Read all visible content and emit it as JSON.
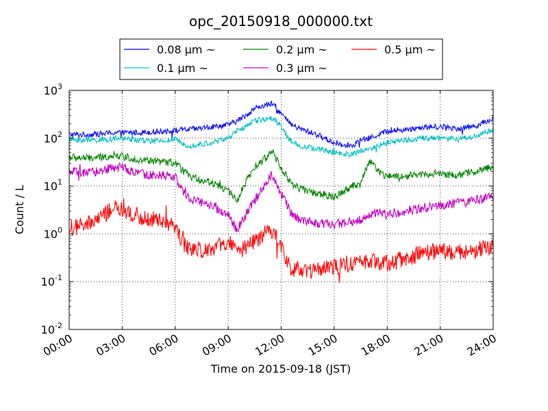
{
  "chart_data": {
    "type": "line",
    "title": "opc_20150918_000000.txt",
    "xlabel": "Time on 2015-09-18 (JST)",
    "ylabel": "Count / L",
    "yscale": "log",
    "ylim": [
      0.01,
      1000
    ],
    "xlim": [
      "2015-09-18 00:00",
      "2015-09-19 00:00"
    ],
    "grid": true,
    "grid_style": "dotted",
    "legend_position": "top-center",
    "x_ticks": [
      "00:00",
      "03:00",
      "06:00",
      "09:00",
      "12:00",
      "15:00",
      "18:00",
      "21:00",
      "24:00"
    ],
    "y_ticks": [
      {
        "base": "10",
        "exp": "-2"
      },
      {
        "base": "10",
        "exp": "-1"
      },
      {
        "base": "10",
        "exp": "0"
      },
      {
        "base": "10",
        "exp": "1"
      },
      {
        "base": "10",
        "exp": "2"
      },
      {
        "base": "10",
        "exp": "3"
      }
    ],
    "x_hours": [
      0,
      1,
      2,
      2.5,
      3,
      4,
      5,
      6,
      6.5,
      7,
      8,
      9,
      9.5,
      10,
      10.5,
      11,
      11.5,
      12,
      12.5,
      13,
      14,
      15,
      16,
      16.5,
      17,
      17.5,
      18,
      19,
      20,
      21,
      22,
      23,
      24
    ],
    "series": [
      {
        "name": "0.08 μm ~",
        "color": "#0000ff",
        "noise": 0.06,
        "values": [
          120,
          118,
          125,
          130,
          130,
          132,
          138,
          145,
          150,
          155,
          170,
          190,
          230,
          300,
          420,
          480,
          520,
          330,
          200,
          160,
          120,
          80,
          70,
          90,
          100,
          120,
          140,
          150,
          170,
          175,
          160,
          180,
          260
        ]
      },
      {
        "name": "0.1 μm ~",
        "color": "#00bfbf",
        "noise": 0.06,
        "values": [
          95,
          90,
          92,
          98,
          100,
          90,
          85,
          95,
          75,
          70,
          80,
          100,
          140,
          180,
          230,
          250,
          270,
          180,
          90,
          70,
          60,
          50,
          45,
          55,
          60,
          70,
          80,
          90,
          100,
          100,
          95,
          110,
          150
        ]
      },
      {
        "name": "0.2 μm ~",
        "color": "#008000",
        "noise": 0.08,
        "values": [
          40,
          38,
          40,
          45,
          42,
          35,
          33,
          30,
          20,
          15,
          12,
          8,
          5,
          12,
          25,
          35,
          55,
          25,
          12,
          9,
          7,
          6,
          10,
          11,
          35,
          20,
          16,
          16,
          18,
          18,
          17,
          20,
          25
        ]
      },
      {
        "name": "0.3 μm ~",
        "color": "#bf00bf",
        "noise": 0.1,
        "values": [
          20,
          18,
          22,
          25,
          24,
          18,
          17,
          16,
          7,
          5,
          4,
          2.5,
          1.2,
          2.5,
          5,
          10,
          18,
          7,
          3,
          2,
          1.7,
          1.6,
          1.8,
          2,
          2.5,
          3,
          2.5,
          3,
          3.5,
          4,
          4.5,
          5,
          6
        ]
      },
      {
        "name": "0.5 μm ~",
        "color": "#ff0000",
        "noise": 0.18,
        "values": [
          1.3,
          1.5,
          2.5,
          3.5,
          3.0,
          2.3,
          2.0,
          1.5,
          0.6,
          0.45,
          0.5,
          0.6,
          0.45,
          0.5,
          0.7,
          1.0,
          1.2,
          0.6,
          0.2,
          0.18,
          0.17,
          0.2,
          0.25,
          0.25,
          0.3,
          0.25,
          0.25,
          0.3,
          0.4,
          0.45,
          0.4,
          0.45,
          0.55
        ]
      }
    ]
  }
}
